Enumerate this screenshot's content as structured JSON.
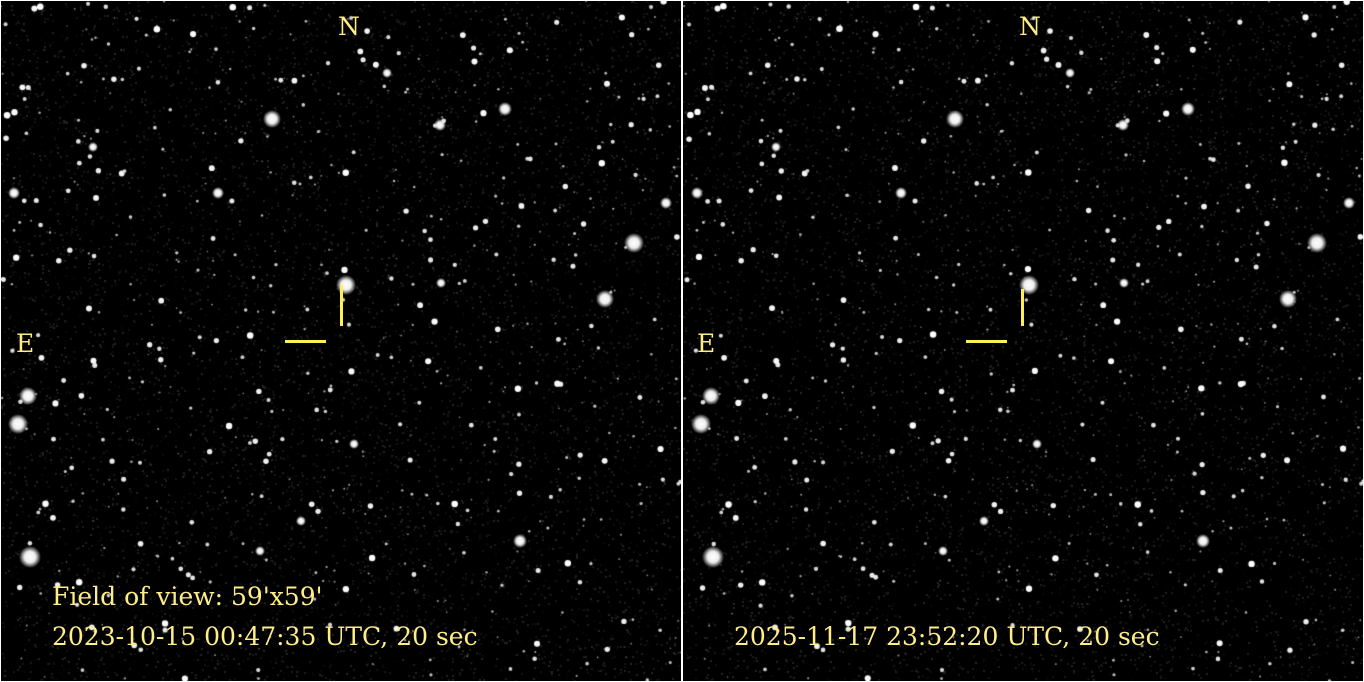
{
  "panels": [
    {
      "north_label": "N",
      "east_label": "E",
      "field_of_view": "Field of view: 59'x59'",
      "timestamp": "2023-10-15 00:47:35 UTC, 20 sec"
    },
    {
      "north_label": "N",
      "east_label": "E",
      "timestamp": "2025-11-17 23:52:20 UTC, 20 sec"
    }
  ],
  "colors": {
    "annotation": "#ffee88",
    "marker": "#ffee55",
    "background": "#000000"
  }
}
